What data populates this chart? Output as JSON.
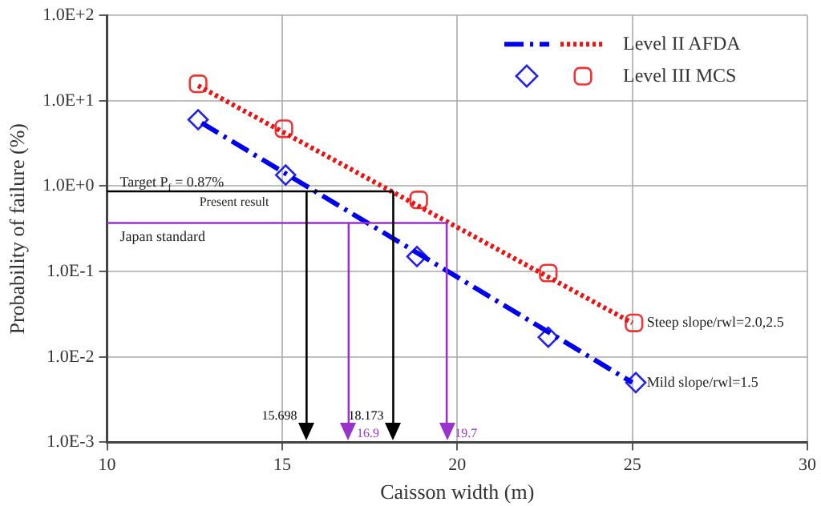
{
  "chart_data": {
    "type": "scatter",
    "xlabel": "Caisson width (m)",
    "ylabel": "Probability of failure (%)",
    "xlim": [
      10,
      30
    ],
    "xticks": [
      10,
      15,
      20,
      25,
      30
    ],
    "ylim": [
      0.001,
      100
    ],
    "yticks": [
      {
        "value": 0.001,
        "label": "1.0E-3"
      },
      {
        "value": 0.01,
        "label": "1.0E-2"
      },
      {
        "value": 0.1,
        "label": "1.0E-1"
      },
      {
        "value": 1,
        "label": "1.0E+0"
      },
      {
        "value": 10,
        "label": "1.0E+1"
      },
      {
        "value": 100,
        "label": "1.0E+2"
      }
    ],
    "log": "y",
    "grid": true,
    "legend": "top right",
    "series": [
      {
        "type": "line",
        "line_style": "dashed",
        "marker": "none",
        "color": "#0000ee",
        "x": [
          12.7,
          25
        ],
        "values": [
          5.5,
          0.005
        ]
      },
      {
        "name": "Level II AFDA",
        "type": "line",
        "line_style": "dotted",
        "marker": "none",
        "color": "#ee1111",
        "x": [
          12.6,
          25
        ],
        "values": [
          15,
          0.025
        ]
      },
      {
        "type": "scatter",
        "marker": "diamond",
        "color": "#2222ee",
        "x": [
          12.6,
          15.1,
          18.85,
          22.6,
          25.1
        ],
        "values": [
          6,
          1.35,
          0.15,
          0.017,
          0.005
        ]
      },
      {
        "name": "Level III MCS",
        "type": "scatter",
        "marker": "square",
        "color": "#ee3333",
        "x": [
          12.6,
          15.05,
          18.9,
          22.6,
          25.05
        ],
        "values": [
          15.8,
          4.7,
          0.69,
          0.096,
          0.025
        ]
      }
    ],
    "ref_lines": [
      {
        "axis": "y",
        "value": 0.87,
        "label": "Target P$_{f}$ = 0.87%",
        "color": "#000000"
      },
      {
        "axis": "y",
        "value": 0.37,
        "label": "Japan standard",
        "color": "#9933cc"
      },
      {
        "axis": "x",
        "value": 15.698,
        "label": "15.698",
        "color": "#000000"
      },
      {
        "axis": "x",
        "value": 18.173,
        "label": "18.173",
        "color": "#000000"
      },
      {
        "axis": "x",
        "value": 16.9,
        "label": "16.9",
        "color": "#9933cc"
      },
      {
        "axis": "x",
        "value": 19.7,
        "label": "19.7",
        "color": "#9933cc"
      }
    ],
    "annotations": [
      "Present result",
      {
        "text": "Steep slope/rwl=2.0,2.5",
        "x": 25,
        "y": 0.025
      },
      {
        "text": "Mild slope/rwl=1.5",
        "x": 25,
        "y": 0.005
      }
    ]
  }
}
